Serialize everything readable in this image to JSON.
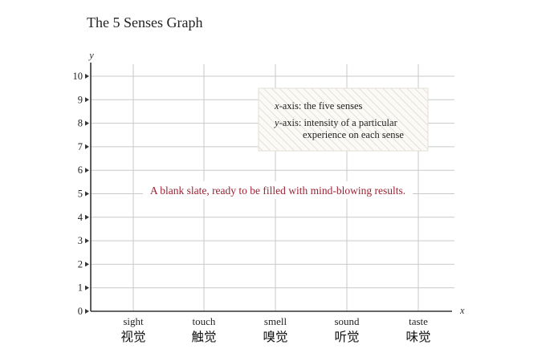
{
  "chart_data": {
    "type": "bar",
    "title": "The 5 Senses Graph",
    "xlabel": "x",
    "ylabel": "y",
    "categories": [
      "sight",
      "touch",
      "smell",
      "sound",
      "taste"
    ],
    "categories_zh": [
      "视觉",
      "触觉",
      "嗅觉",
      "听觉",
      "味觉"
    ],
    "series": [
      {
        "values": [
          0,
          0,
          0,
          0,
          0
        ]
      }
    ],
    "ylim": [
      0,
      10
    ],
    "yticks": [
      0,
      1,
      2,
      3,
      4,
      5,
      6,
      7,
      8,
      9,
      10
    ],
    "grid": true,
    "legend": {
      "position": "top-right",
      "x_prefix": "x",
      "x_text": "-axis: the five senses",
      "y_prefix": "y",
      "y_text_line1": "-axis: intensity of a particular",
      "y_text_line2": "experience on each sense"
    },
    "annotation": "A blank slate, ready to be filled with mind-blowing results.",
    "colors": {
      "grid": "#c9c9c9",
      "axis": "#333333",
      "annotation": "#9b2335",
      "legend_hatch": "#d8d4c8"
    }
  }
}
